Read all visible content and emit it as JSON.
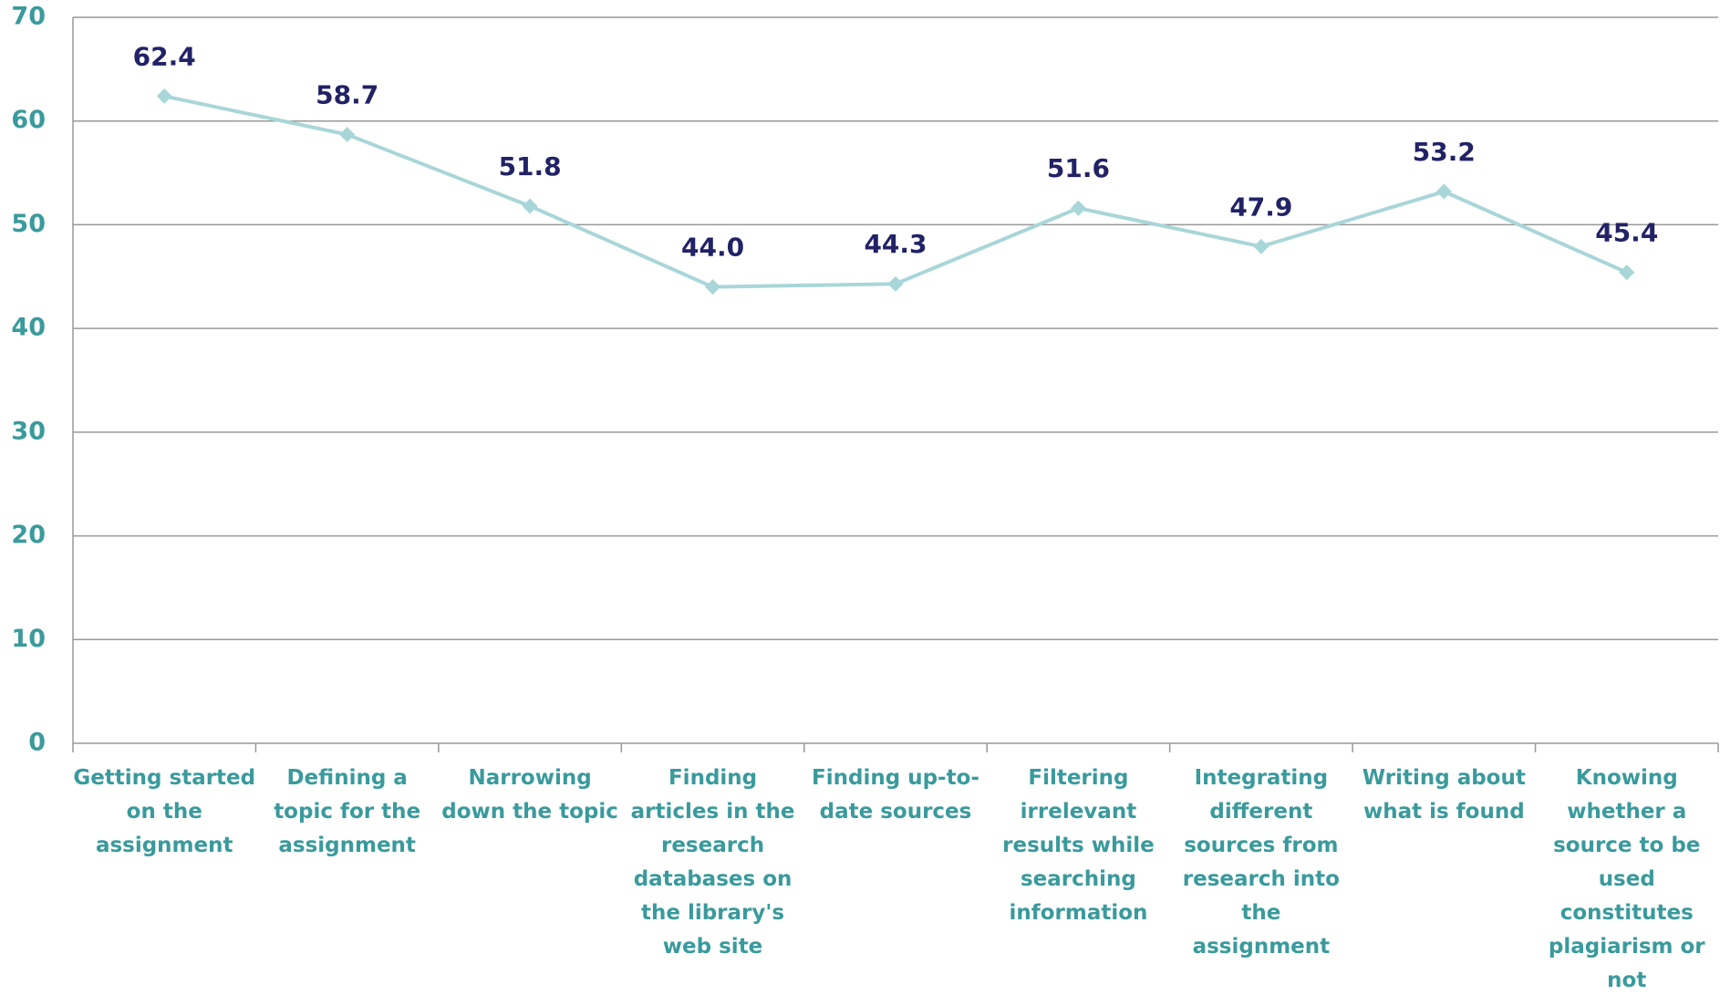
{
  "chart_data": {
    "type": "line",
    "categories": [
      "Getting started on the assignment",
      "Defining a topic for the assignment",
      "Narrowing down the topic",
      "Finding articles in the research databases on the library's web site",
      "Finding up-to-date sources",
      "Filtering irrelevant results while searching information",
      "Integrating different sources from research into the assignment",
      "Writing about what is found",
      "Knowing whether a source to be used constitutes plagiarism or not"
    ],
    "values": [
      62.4,
      58.7,
      51.8,
      44.0,
      44.3,
      51.6,
      47.9,
      53.2,
      45.4
    ],
    "value_labels": [
      "62.4",
      "58.7",
      "51.8",
      "44.0",
      "44.3",
      "51.6",
      "47.9",
      "53.2",
      "45.4"
    ],
    "color": "#a9d6d8",
    "ylim": [
      0,
      70
    ],
    "yticks": [
      0,
      10,
      20,
      30,
      40,
      50,
      60,
      70
    ],
    "grid": true
  }
}
